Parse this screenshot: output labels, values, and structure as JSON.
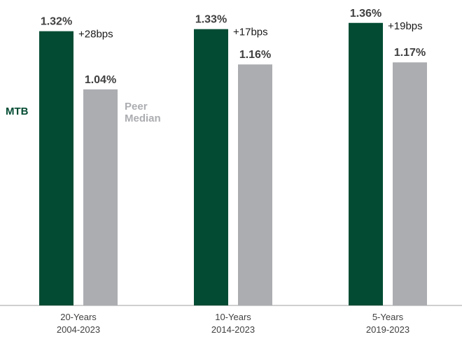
{
  "chart_data": {
    "type": "bar",
    "categories": [
      {
        "line1": "20-Years",
        "line2": "2004-2023"
      },
      {
        "line1": "10-Years",
        "line2": "2014-2023"
      },
      {
        "line1": "5-Years",
        "line2": "2019-2023"
      }
    ],
    "series": [
      {
        "name": "MTB",
        "color": "#034c33",
        "values": [
          1.32,
          1.33,
          1.36
        ],
        "value_labels": [
          "1.32%",
          "1.33%",
          "1.36%"
        ]
      },
      {
        "name": "Peer Median",
        "name_lines": [
          "Peer",
          "Median"
        ],
        "color": "#acadb1",
        "values": [
          1.04,
          1.16,
          1.17
        ],
        "value_labels": [
          "1.04%",
          "1.16%",
          "1.17%"
        ]
      }
    ],
    "annotations": [
      "+28bps",
      "+17bps",
      "+19bps"
    ],
    "ylim": [
      0,
      1.45
    ],
    "grid": false,
    "legend": "inline-left",
    "axis_color": "#bfbfbf"
  }
}
